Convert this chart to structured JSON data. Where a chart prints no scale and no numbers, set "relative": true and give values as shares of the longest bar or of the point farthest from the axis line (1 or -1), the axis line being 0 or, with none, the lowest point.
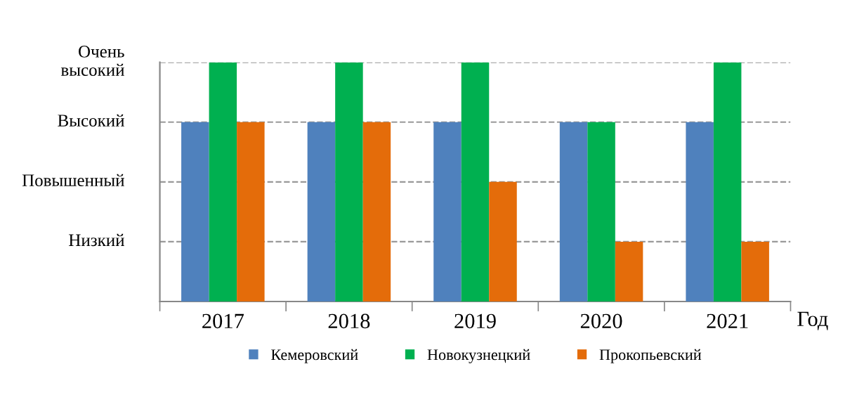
{
  "chart_data": {
    "type": "bar",
    "xlabel": "Год",
    "categories": [
      "2017",
      "2018",
      "2019",
      "2020",
      "2021"
    ],
    "relative": true,
    "series": [
      {
        "name": "Кемеровский",
        "color": "#4f81bd",
        "values": [
          0.75,
          0.75,
          0.75,
          0.75,
          0.75
        ]
      },
      {
        "name": "Новокузнецкий",
        "color": "#00b050",
        "values": [
          1,
          1,
          1,
          0.75,
          1
        ]
      },
      {
        "name": "Прокопьевский",
        "color": "#e46c0a",
        "values": [
          0.75,
          0.75,
          0.5,
          0.25,
          0.25
        ]
      }
    ],
    "ref_lines": [
      {
        "axis": "y",
        "value": 0.25,
        "label": "Низкий",
        "color": "#999999",
        "line_style": "dashed"
      },
      {
        "axis": "y",
        "value": 0.5,
        "label": "Повышенный",
        "color": "#999999",
        "line_style": "dashed"
      },
      {
        "axis": "y",
        "value": 0.75,
        "label": "Высокий",
        "color": "#999999",
        "line_style": "dashed"
      },
      {
        "axis": "y",
        "value": 1,
        "label": "Очень\nвысокий",
        "color": "#999999",
        "line_style": "dashed"
      }
    ],
    "legend": "bottom"
  }
}
